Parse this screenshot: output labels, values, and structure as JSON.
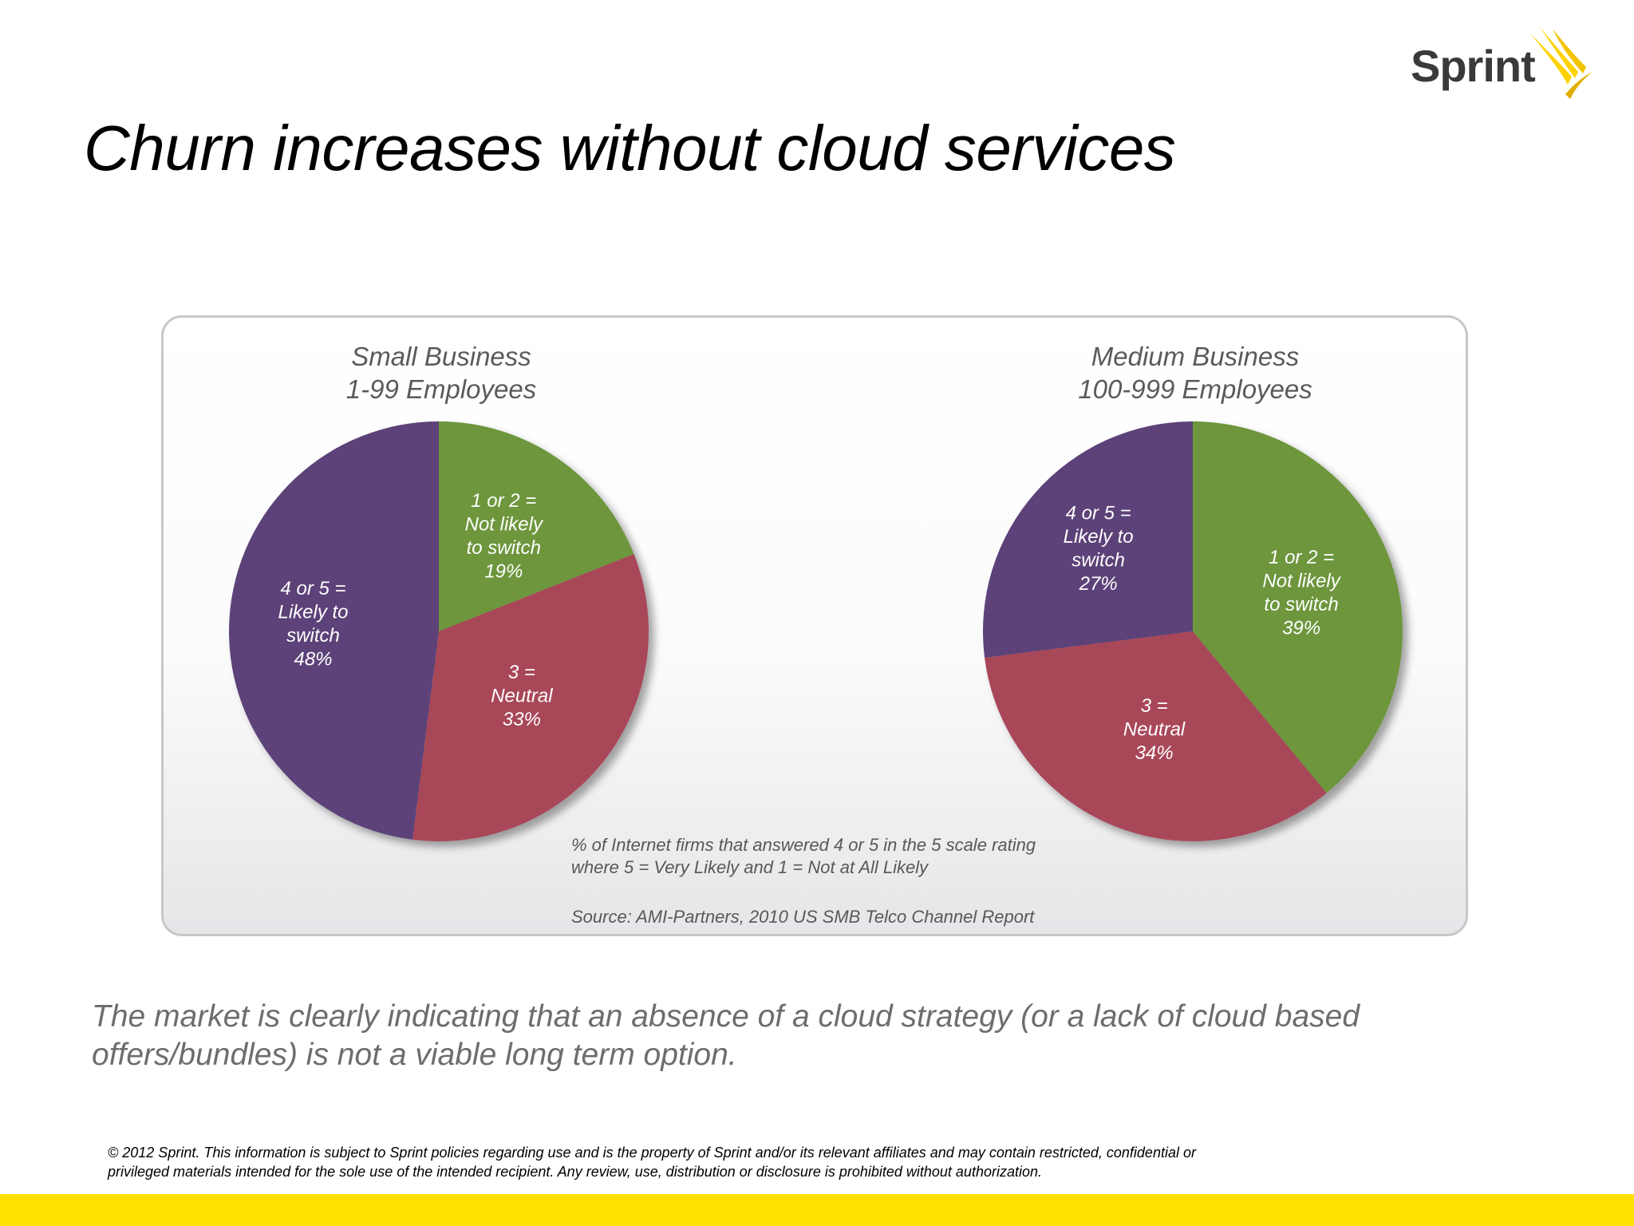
{
  "brand": {
    "name": "Sprint",
    "accent": "#ffd200"
  },
  "title": "Churn increases without cloud services",
  "colors": {
    "not_likely": "#6d963d",
    "neutral": "#a84658",
    "likely": "#5b4278"
  },
  "chart_data": [
    {
      "type": "pie",
      "title": [
        "Small Business",
        "1-99 Employees"
      ],
      "slices": [
        {
          "label": [
            "1 or 2 =",
            "Not likely",
            "to switch",
            "19%"
          ],
          "value": 19,
          "color": "#6d963d"
        },
        {
          "label": [
            "3 =",
            "Neutral",
            "33%"
          ],
          "value": 33,
          "color": "#a84658"
        },
        {
          "label": [
            "4 or 5 =",
            "Likely to",
            "switch",
            "48%"
          ],
          "value": 48,
          "color": "#5b4278"
        }
      ]
    },
    {
      "type": "pie",
      "title": [
        "Medium Business",
        "100-999 Employees"
      ],
      "slices": [
        {
          "label": [
            "1 or 2 =",
            "Not likely",
            "to switch",
            "39%"
          ],
          "value": 39,
          "color": "#6d963d"
        },
        {
          "label": [
            "3 =",
            "Neutral",
            "34%"
          ],
          "value": 34,
          "color": "#a84658"
        },
        {
          "label": [
            "4 or 5 =",
            "Likely to",
            "switch",
            "27%"
          ],
          "value": 27,
          "color": "#5b4278"
        }
      ]
    }
  ],
  "note": [
    "% of Internet firms that answered 4 or 5 in the 5 scale rating",
    "where 5 = Very Likely and 1 = Not at All Likely"
  ],
  "source": "Source: AMI-Partners, 2010 US SMB Telco Channel Report",
  "conclusion": "The market is clearly indicating that an absence of a cloud strategy (or a lack of cloud based offers/bundles) is not a viable long term option.",
  "copyright": "© 2012 Sprint. This information is subject to Sprint policies regarding use and is the property of Sprint and/or its relevant affiliates and may contain restricted, confidential or privileged materials intended for the sole use of the intended recipient. Any review, use, distribution or disclosure is prohibited without authorization."
}
